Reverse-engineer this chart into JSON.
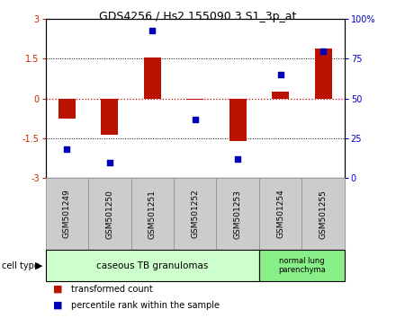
{
  "title": "GDS4256 / Hs2.155090.3.S1_3p_at",
  "samples": [
    "GSM501249",
    "GSM501250",
    "GSM501251",
    "GSM501252",
    "GSM501253",
    "GSM501254",
    "GSM501255"
  ],
  "transformed_count": [
    -0.75,
    -1.35,
    1.55,
    -0.05,
    -1.6,
    0.25,
    1.9
  ],
  "percentile_rank": [
    18,
    10,
    93,
    37,
    12,
    65,
    80
  ],
  "ylim_left": [
    -3,
    3
  ],
  "ylim_right": [
    0,
    100
  ],
  "yticks_left": [
    -3,
    -1.5,
    0,
    1.5,
    3
  ],
  "yticks_right": [
    0,
    25,
    50,
    75,
    100
  ],
  "ytick_labels_right": [
    "0",
    "25",
    "50",
    "75",
    "100%"
  ],
  "bar_color": "#bb1100",
  "dot_color": "#0000bb",
  "hline0_color": "#cc0000",
  "hline15_color": "#000000",
  "groups": [
    {
      "label": "caseous TB granulomas",
      "indices": [
        0,
        1,
        2,
        3,
        4
      ],
      "color": "#ccffcc"
    },
    {
      "label": "normal lung\nparenchyma",
      "indices": [
        5,
        6
      ],
      "color": "#88ee88"
    }
  ],
  "sample_box_color": "#cccccc",
  "sample_box_border": "#999999",
  "legend_items": [
    {
      "color": "#bb1100",
      "label": "transformed count"
    },
    {
      "color": "#0000bb",
      "label": "percentile rank within the sample"
    }
  ],
  "cell_type_label": "cell type"
}
